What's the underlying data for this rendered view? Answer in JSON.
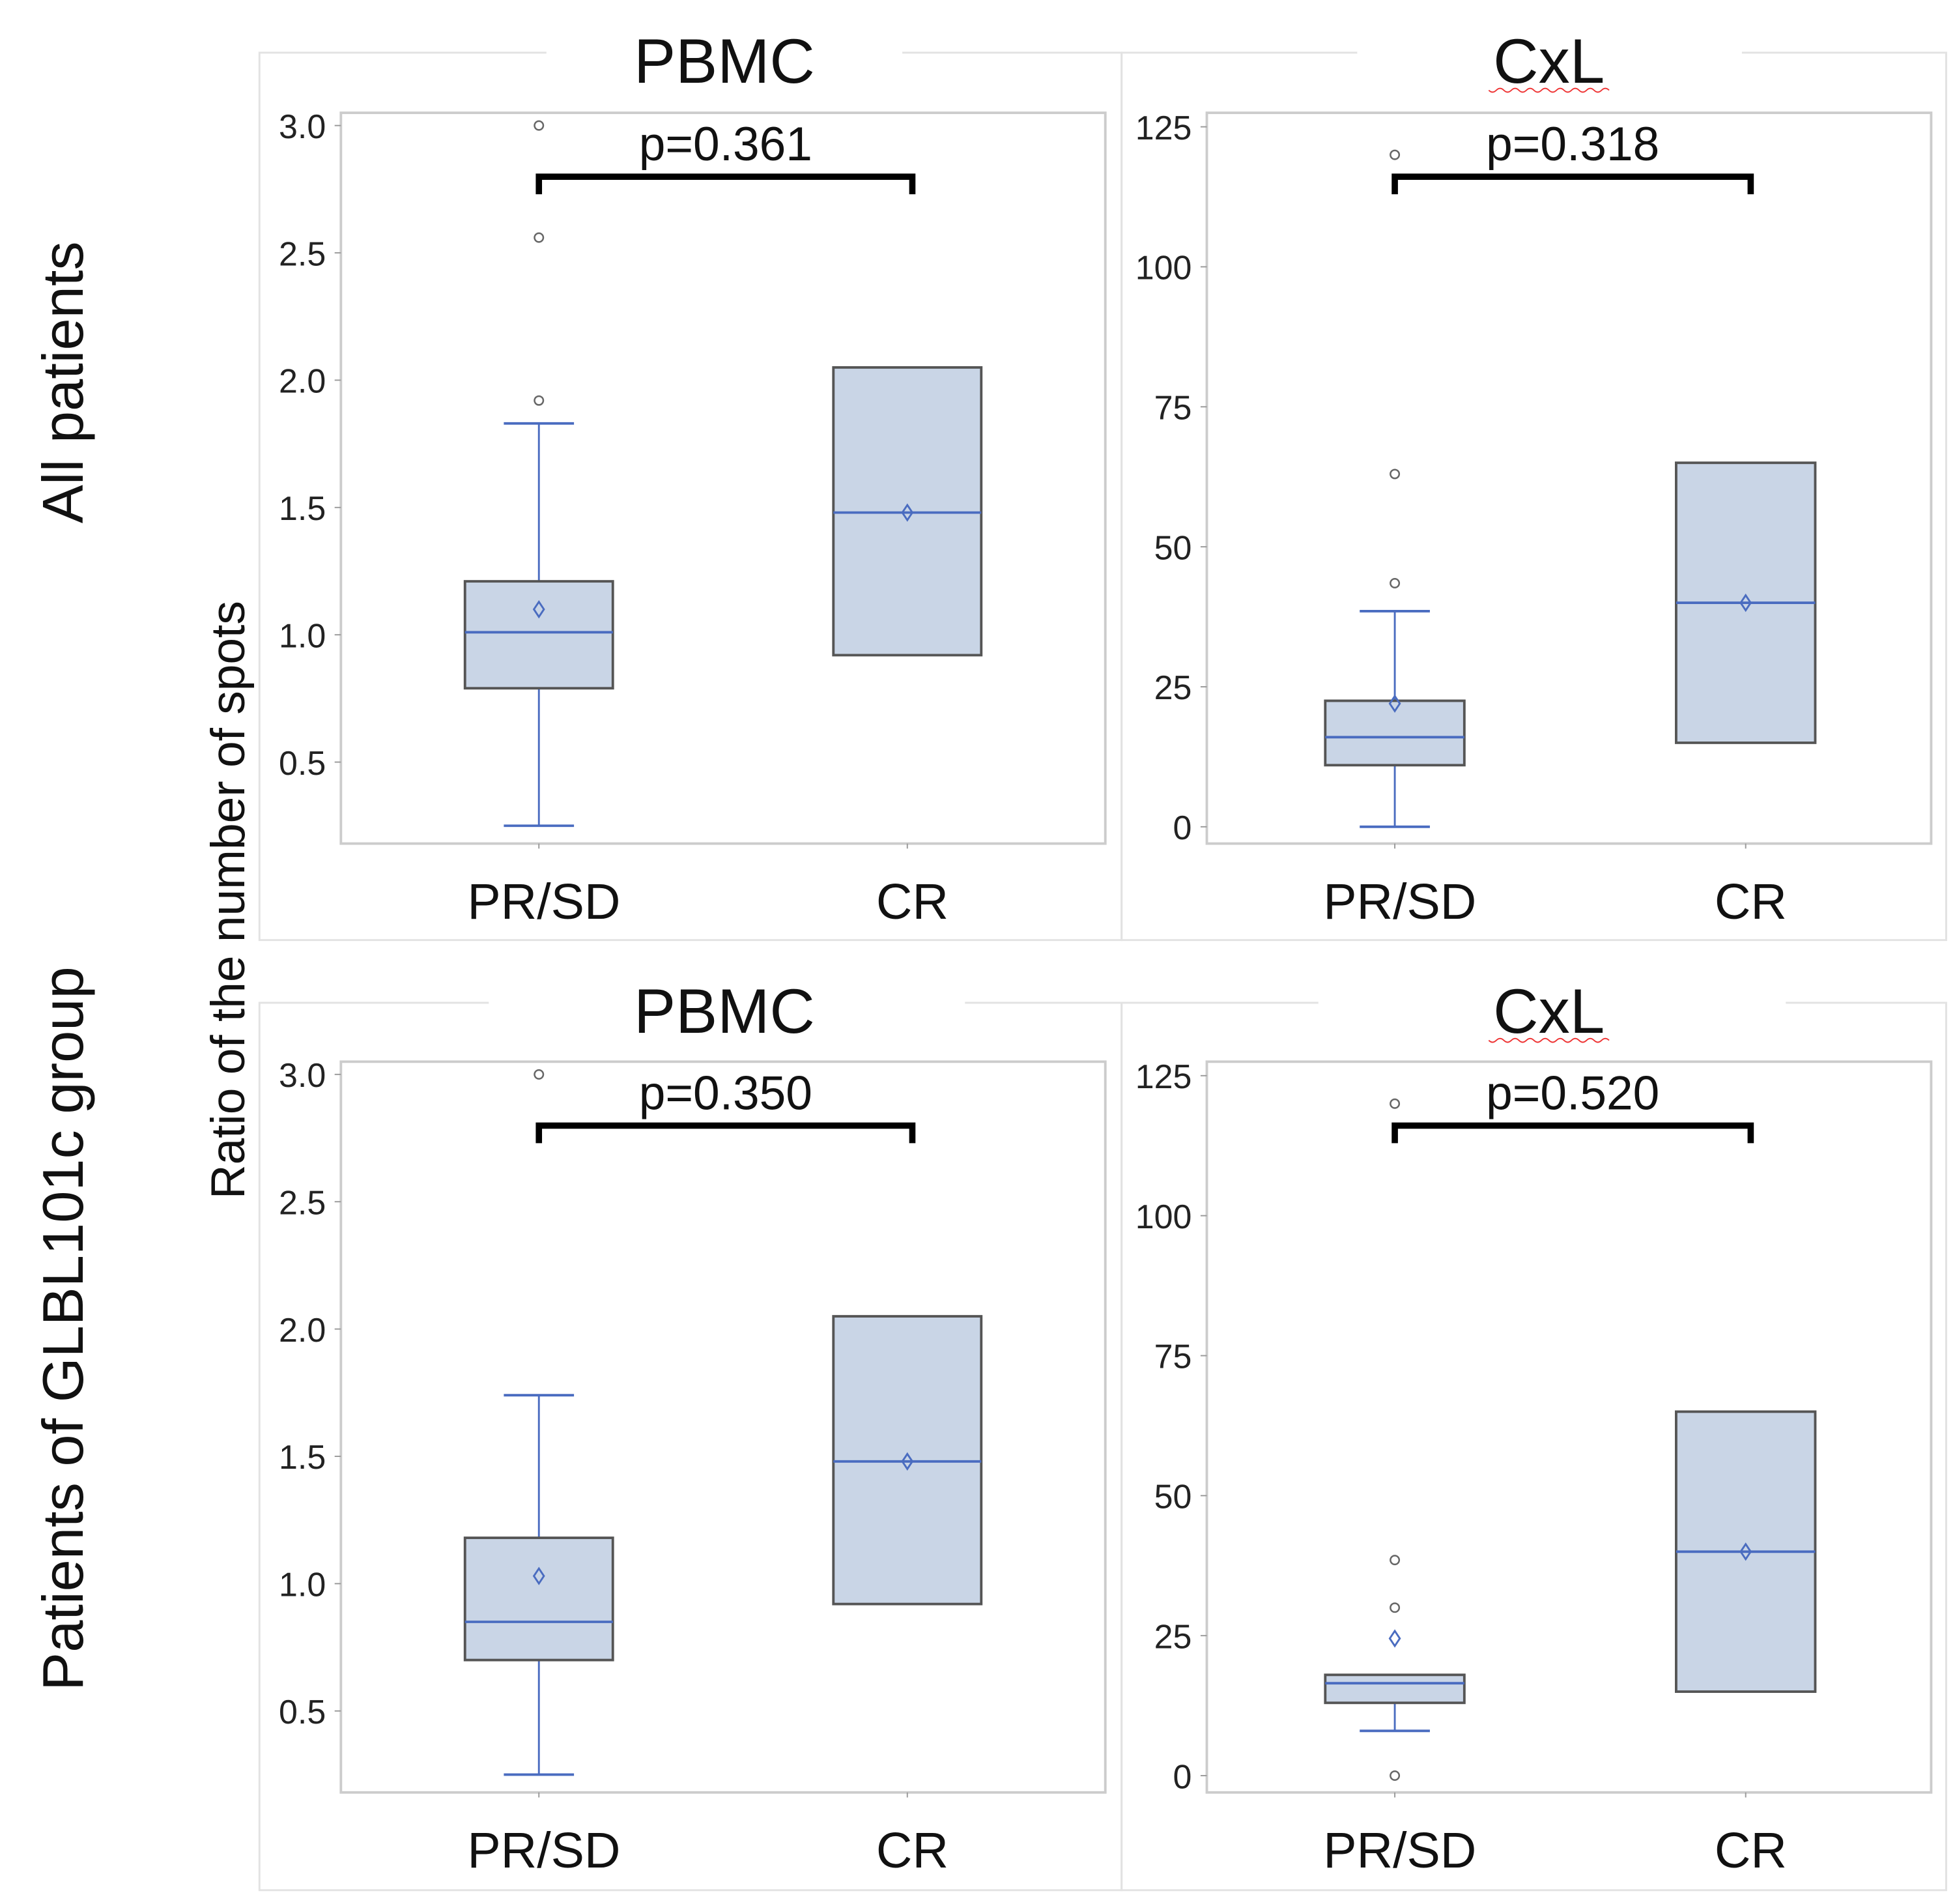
{
  "chart_data": {
    "type": "boxplot",
    "ylabel": "Ratio of the number of spots",
    "row_labels": [
      "All patients",
      "Patients of GLBL101c group"
    ],
    "colors": {
      "box_fill": "#c9d5e6",
      "box_edge": "#555555",
      "line": "#4a6cc0",
      "outlier": "#666666",
      "bracket": "#000000",
      "frame": "#cccccc"
    },
    "panels": [
      {
        "title": "PBMC",
        "row": "All patients",
        "p_value": "p=0.361",
        "ylim": [
          0.18,
          3.05
        ],
        "yticks": [
          "0.5",
          "1.0",
          "1.5",
          "2.0",
          "2.5",
          "3.0"
        ],
        "categories": [
          "PR/SD",
          "CR"
        ],
        "boxes": [
          {
            "min": 0.25,
            "q1": 0.79,
            "median": 1.01,
            "q3": 1.21,
            "max": 1.83,
            "mean": 1.1,
            "outliers": [
              1.92,
              2.56,
              3.0
            ]
          },
          {
            "min": 0.92,
            "q1": 0.92,
            "median": 1.48,
            "q3": 2.05,
            "max": 2.05,
            "mean": 1.48,
            "outliers": []
          }
        ]
      },
      {
        "title": "CxL",
        "row": "All patients",
        "p_value": "p=0.318",
        "ylim": [
          -3,
          127.5
        ],
        "yticks": [
          "0",
          "25",
          "50",
          "75",
          "100",
          "125"
        ],
        "categories": [
          "PR/SD",
          "CR"
        ],
        "boxes": [
          {
            "min": 0,
            "q1": 11,
            "median": 16,
            "q3": 22.5,
            "max": 38.5,
            "mean": 22,
            "outliers": [
              43.5,
              63,
              120
            ]
          },
          {
            "min": 15,
            "q1": 15,
            "median": 40,
            "q3": 65,
            "max": 65,
            "mean": 40,
            "outliers": []
          }
        ]
      },
      {
        "title": "PBMC",
        "row": "Patients of GLBL101c group",
        "p_value": "p=0.350",
        "ylim": [
          0.18,
          3.05
        ],
        "yticks": [
          "0.5",
          "1.0",
          "1.5",
          "2.0",
          "2.5",
          "3.0"
        ],
        "categories": [
          "PR/SD",
          "CR"
        ],
        "boxes": [
          {
            "min": 0.25,
            "q1": 0.7,
            "median": 0.85,
            "q3": 1.18,
            "max": 1.74,
            "mean": 1.03,
            "outliers": [
              3.0
            ]
          },
          {
            "min": 0.92,
            "q1": 0.92,
            "median": 1.48,
            "q3": 2.05,
            "max": 2.05,
            "mean": 1.48,
            "outliers": []
          }
        ]
      },
      {
        "title": "CxL",
        "row": "Patients of GLBL101c group",
        "p_value": "p=0.520",
        "ylim": [
          -3,
          127.5
        ],
        "yticks": [
          "0",
          "25",
          "50",
          "75",
          "100",
          "125"
        ],
        "categories": [
          "PR/SD",
          "CR"
        ],
        "boxes": [
          {
            "min": 8,
            "q1": 13,
            "median": 16.5,
            "q3": 18,
            "max": 18,
            "mean": 24.5,
            "outliers": [
              0,
              30,
              38.5,
              120
            ]
          },
          {
            "min": 15,
            "q1": 15,
            "median": 40,
            "q3": 65,
            "max": 65,
            "mean": 40,
            "outliers": []
          }
        ]
      }
    ]
  }
}
